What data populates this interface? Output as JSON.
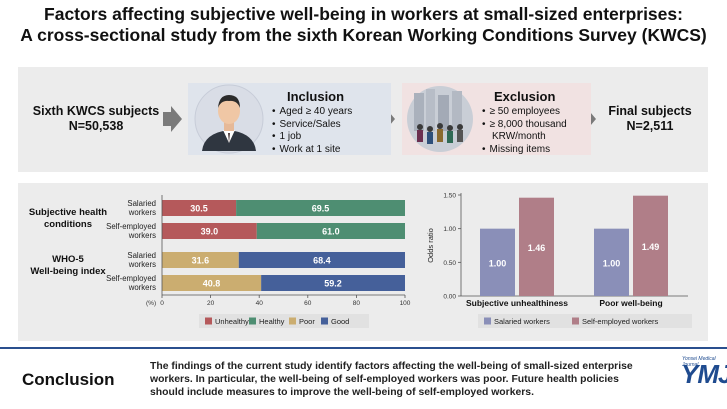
{
  "header": {
    "title_line1": "Factors affecting subjective well-being in workers at small-sized enterprises:",
    "title_line2": "A cross-sectional study from the sixth Korean Working Conditions Survey (KWCS)"
  },
  "flow": {
    "start_line1": "Sixth KWCS subjects",
    "start_line2": "N=50,538",
    "inclusion_title": "Inclusion",
    "inclusion_items": [
      "Aged ≥ 40 years",
      "Service/Sales",
      "1 job",
      "Work at 1 site"
    ],
    "exclusion_title": "Exclusion",
    "exclusion_items": [
      "≥ 50 employees",
      "≥ 8,000 thousand",
      "KRW/month",
      "Missing items"
    ],
    "final_line1": "Final subjects",
    "final_line2": "N=2,511"
  },
  "colors": {
    "unhealthy": "#b5595b",
    "healthy": "#4e8e72",
    "poor": "#cbad70",
    "good": "#45609a",
    "salaried": "#8a8fb8",
    "self_employed": "#b07e88",
    "accent": "#1f4b8f"
  },
  "chart_data": [
    {
      "type": "bar",
      "orientation": "horizontal-stacked",
      "groups": [
        {
          "name": "Subjective health conditions",
          "rows": [
            {
              "label": [
                "Salaried",
                "workers"
              ],
              "segments": [
                {
                  "category": "Unhealthy",
                  "value": 30.5,
                  "label": "30.5"
                },
                {
                  "category": "Healthy",
                  "value": 69.5,
                  "label": "69.5"
                }
              ]
            },
            {
              "label": [
                "Self-employed",
                "workers"
              ],
              "segments": [
                {
                  "category": "Unhealthy",
                  "value": 39.0,
                  "label": "39.0"
                },
                {
                  "category": "Healthy",
                  "value": 61.0,
                  "label": "61.0"
                }
              ]
            }
          ]
        },
        {
          "name": "WHO-5 Well-being index",
          "rows": [
            {
              "label": [
                "Salaried",
                "workers"
              ],
              "segments": [
                {
                  "category": "Poor",
                  "value": 31.6,
                  "label": "31.6"
                },
                {
                  "category": "Good",
                  "value": 68.4,
                  "label": "68.4"
                }
              ]
            },
            {
              "label": [
                "Self-employed",
                "workers"
              ],
              "segments": [
                {
                  "category": "Poor",
                  "value": 40.8,
                  "label": "40.8"
                },
                {
                  "category": "Good",
                  "value": 59.2,
                  "label": "59.2"
                }
              ]
            }
          ]
        }
      ],
      "xlim": [
        0,
        100
      ],
      "xticks": [
        "0",
        "20",
        "40",
        "60",
        "80",
        "100"
      ],
      "xlabel": "(%)",
      "legend": [
        "Unhealthy",
        "Healthy",
        "Poor",
        "Good"
      ],
      "legend_position": "bottom"
    },
    {
      "type": "bar",
      "categories": [
        "Subjective unhealthiness",
        "Poor well-being"
      ],
      "series": [
        {
          "name": "Salaried workers",
          "values": [
            1.0,
            1.0
          ],
          "labels": [
            "1.00",
            "1.00"
          ]
        },
        {
          "name": "Self-employed workers",
          "values": [
            1.46,
            1.49
          ],
          "labels": [
            "1.46",
            "1.49"
          ]
        }
      ],
      "ylabel": "Odds ratio",
      "ylim": [
        0,
        1.5
      ],
      "yticks": [
        "0.00",
        "0.50",
        "1.00",
        "1.50"
      ],
      "legend_position": "bottom"
    }
  ],
  "conclusion": {
    "label": "Conclusion",
    "line1": "The findings of the current study identify factors affecting the well-being of small-sized enterprise",
    "line2": "workers. In particular, the well-being of self-employed workers was poor. Future health policies",
    "line3": "should include measures to improve the well-being of self-employed workers."
  },
  "logo": {
    "journal": "Yonsei Medical Journal",
    "abbr": "YMJ"
  }
}
